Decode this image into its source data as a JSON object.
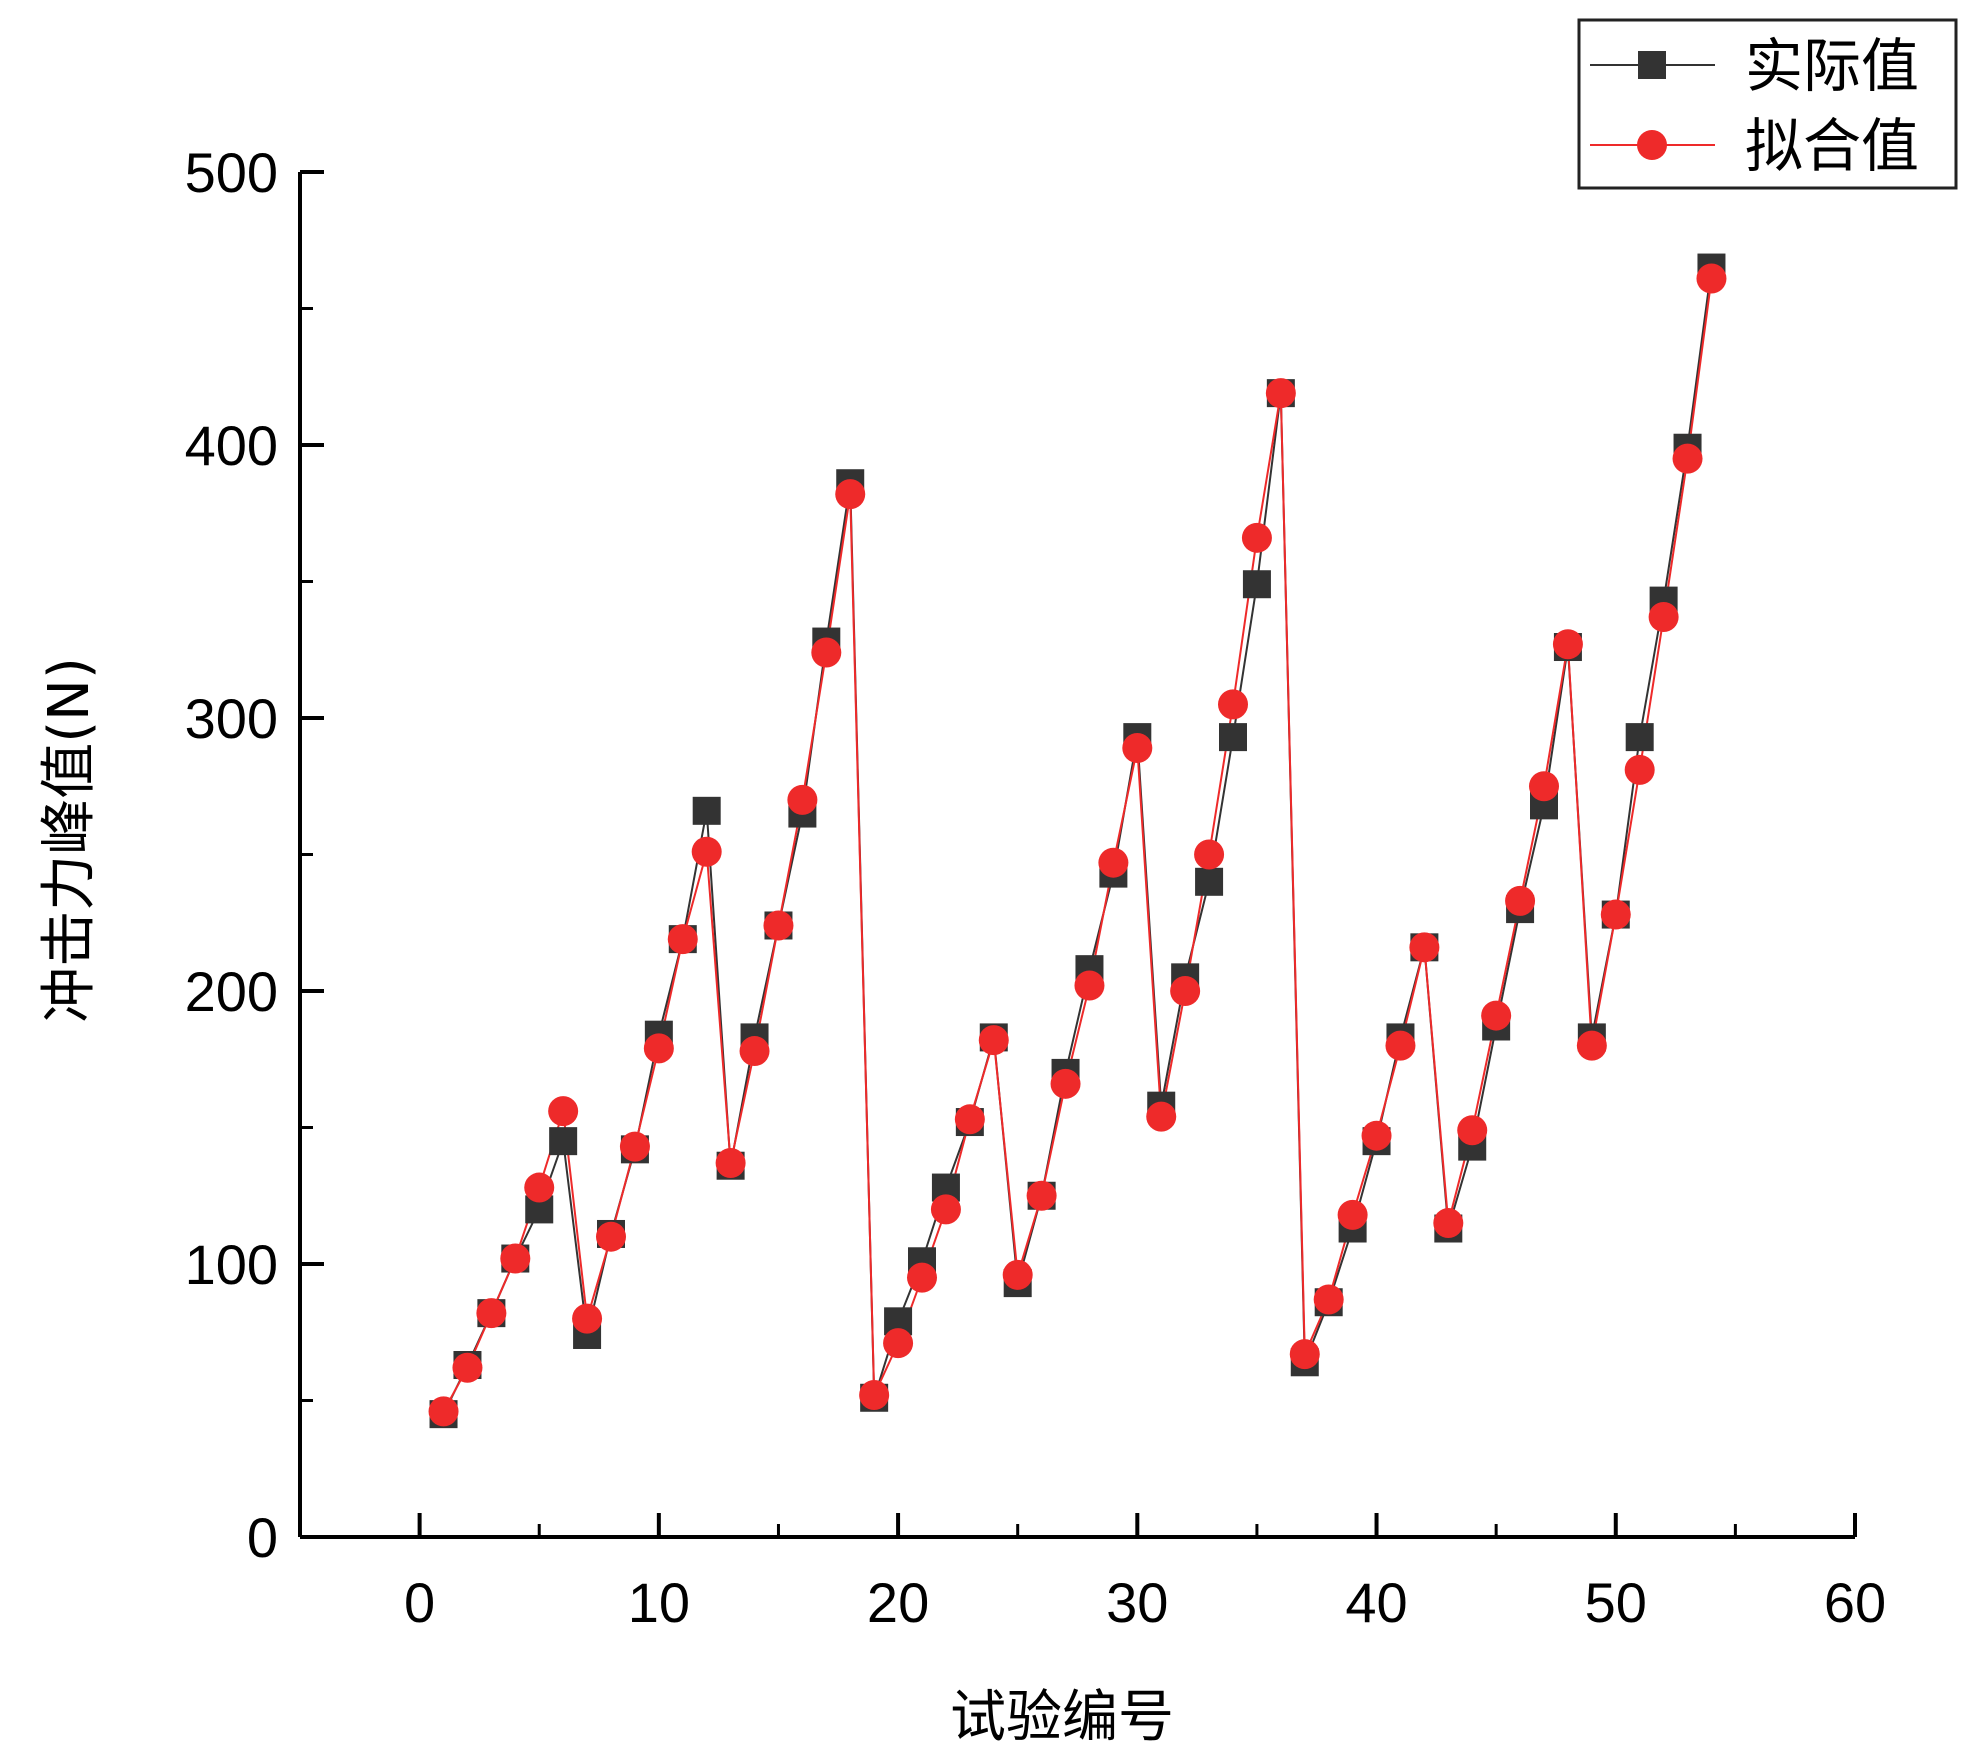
{
  "chart_data": {
    "type": "line",
    "xlabel": "试验编号",
    "ylabel": "冲击力峰值(N)",
    "xlim": [
      -5,
      60
    ],
    "ylim": [
      0,
      500
    ],
    "xticks": [
      0,
      10,
      20,
      30,
      40,
      50,
      60
    ],
    "yticks": [
      0,
      100,
      200,
      300,
      400,
      500
    ],
    "grid": false,
    "legend_position": "top-right",
    "x": [
      1,
      2,
      3,
      4,
      5,
      6,
      7,
      8,
      9,
      10,
      11,
      12,
      13,
      14,
      15,
      16,
      17,
      18,
      19,
      20,
      21,
      22,
      23,
      24,
      25,
      26,
      27,
      28,
      29,
      30,
      31,
      32,
      33,
      34,
      35,
      36,
      37,
      38,
      39,
      40,
      41,
      42,
      43,
      44,
      45,
      46,
      47,
      48,
      49,
      50,
      51,
      52,
      53,
      54
    ],
    "series": [
      {
        "name": "实际值",
        "color": "#333333",
        "marker": "square",
        "values": [
          45,
          63,
          82,
          102,
          120,
          145,
          74,
          111,
          142,
          184,
          219,
          266,
          136,
          183,
          224,
          265,
          328,
          386,
          51,
          79,
          101,
          128,
          152,
          183,
          93,
          125,
          170,
          208,
          243,
          293,
          158,
          205,
          240,
          293,
          349,
          419,
          64,
          86,
          113,
          145,
          183,
          216,
          113,
          143,
          187,
          230,
          268,
          326,
          183,
          228,
          293,
          343,
          399,
          465
        ]
      },
      {
        "name": "拟合值",
        "color": "#ee2a2a",
        "marker": "circle",
        "values": [
          46,
          62,
          82,
          102,
          128,
          156,
          80,
          110,
          143,
          179,
          219,
          251,
          137,
          178,
          224,
          270,
          324,
          382,
          52,
          71,
          95,
          120,
          153,
          182,
          96,
          125,
          166,
          202,
          247,
          289,
          154,
          200,
          250,
          305,
          366,
          419,
          67,
          87,
          118,
          147,
          180,
          216,
          115,
          149,
          191,
          233,
          275,
          327,
          180,
          228,
          281,
          337,
          395,
          461
        ]
      }
    ]
  }
}
